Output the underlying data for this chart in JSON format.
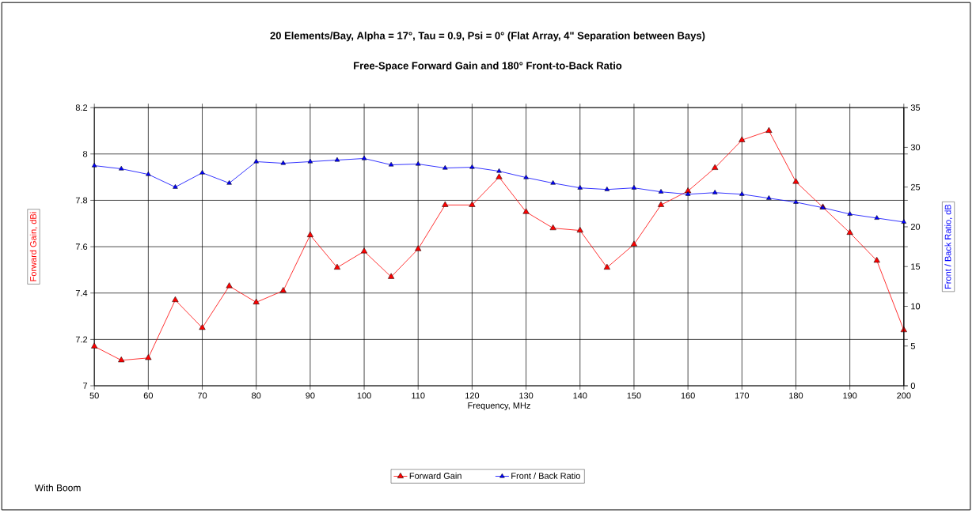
{
  "chart_data": {
    "type": "line",
    "title": "20 Elements/Bay, Alpha = 17°, Tau = 0.9, Psi = 0° (Flat Array, 4\" Separation between Bays)",
    "subtitle": "Free-Space Forward Gain and 180° Front-to-Back Ratio",
    "xlabel": "Frequency, MHz",
    "ylabel": "Forward Gain, dBi",
    "y2label": "Front / Back Ratio, dB",
    "x": [
      50,
      55,
      60,
      65,
      70,
      75,
      80,
      85,
      90,
      95,
      100,
      105,
      110,
      115,
      120,
      125,
      130,
      135,
      140,
      145,
      150,
      155,
      160,
      165,
      170,
      175,
      180,
      185,
      190,
      195,
      200
    ],
    "series": [
      {
        "name": "Forward Gain",
        "color": "#ff0000",
        "values": [
          7.17,
          7.11,
          7.12,
          7.37,
          7.25,
          7.43,
          7.36,
          7.41,
          7.65,
          7.51,
          7.58,
          7.47,
          7.59,
          7.78,
          7.78,
          7.9,
          7.75,
          7.68,
          7.67,
          7.51,
          7.61,
          7.78,
          7.84,
          7.94,
          8.06,
          8.1,
          7.88,
          7.77,
          7.66,
          7.54,
          7.24
        ]
      },
      {
        "name": "Front / Back Ratio",
        "color": "#0000ff",
        "axis": "y2",
        "values": [
          27.7,
          27.3,
          26.6,
          25.0,
          26.8,
          25.5,
          28.2,
          28.0,
          28.2,
          28.4,
          28.6,
          27.8,
          27.9,
          27.4,
          27.5,
          27.0,
          26.2,
          25.5,
          24.9,
          24.7,
          24.9,
          24.4,
          24.1,
          24.3,
          24.1,
          23.6,
          23.1,
          22.4,
          21.6,
          21.1,
          20.6
        ]
      }
    ],
    "xlim": [
      50,
      200
    ],
    "xticks": [
      50,
      60,
      70,
      80,
      90,
      100,
      110,
      120,
      130,
      140,
      150,
      160,
      170,
      180,
      190,
      200
    ],
    "ylim": [
      7,
      8.2
    ],
    "yticks": [
      7,
      7.2,
      7.4,
      7.6,
      7.8,
      8,
      8.2
    ],
    "y2lim": [
      0,
      35
    ],
    "y2ticks": [
      0,
      5,
      10,
      15,
      20,
      25,
      30,
      35
    ],
    "grid": true,
    "legend": "bottom",
    "marker": "triangle",
    "line_style": "solid",
    "annotations": [
      "With Boom"
    ]
  }
}
